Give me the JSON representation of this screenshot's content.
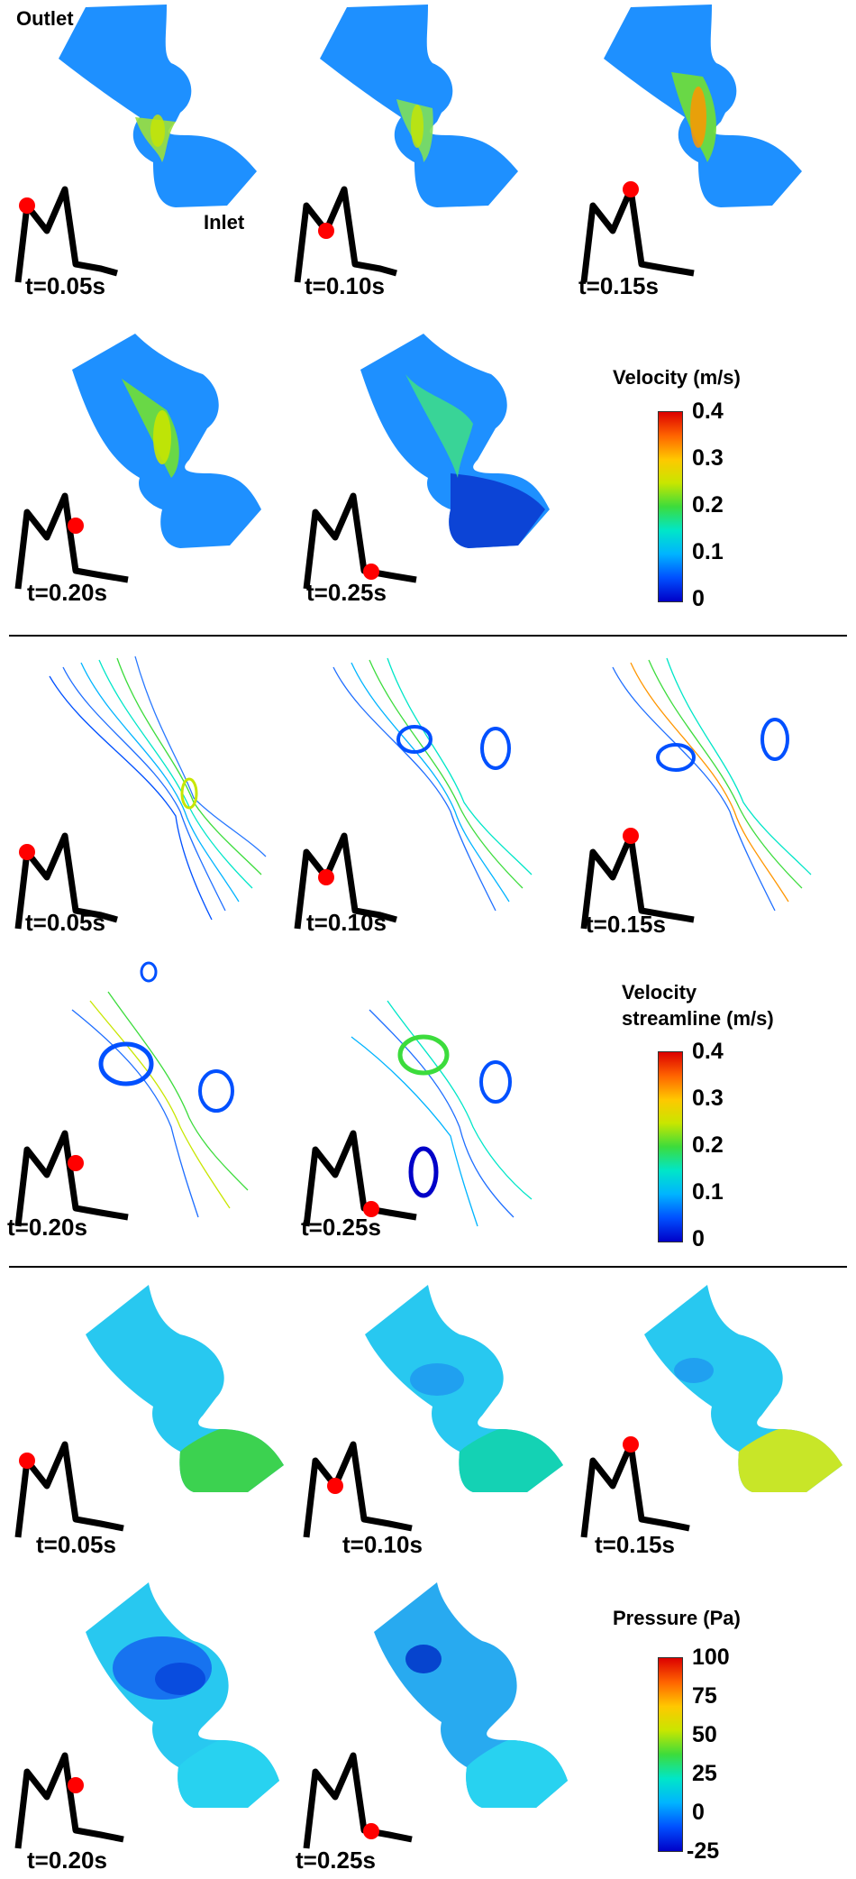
{
  "labels": {
    "outlet": "Outlet",
    "inlet": "Inlet"
  },
  "time_points": [
    "t=0.05s",
    "t=0.10s",
    "t=0.15s",
    "t=0.20s",
    "t=0.25s"
  ],
  "panels": [
    {
      "id": "velocity",
      "legend": {
        "title": "Velocity  (m/s)",
        "ticks": [
          "0.4",
          "0.3",
          "0.2",
          "0.1",
          "0"
        ],
        "range": [
          0,
          0.4
        ]
      },
      "frames": [
        {
          "time": "t=0.05s",
          "phase": 0
        },
        {
          "time": "t=0.10s",
          "phase": 1
        },
        {
          "time": "t=0.15s",
          "phase": 2
        },
        {
          "time": "t=0.20s",
          "phase": 3
        },
        {
          "time": "t=0.25s",
          "phase": 4
        }
      ]
    },
    {
      "id": "streamline",
      "legend": {
        "title_line1": "Velocity",
        "title_line2": "streamline (m/s)",
        "ticks": [
          "0.4",
          "0.3",
          "0.2",
          "0.1",
          "0"
        ],
        "range": [
          0,
          0.4
        ]
      },
      "frames": [
        {
          "time": "t=0.05s",
          "phase": 0
        },
        {
          "time": "t=0.10s",
          "phase": 1
        },
        {
          "time": "t=0.15s",
          "phase": 2
        },
        {
          "time": "t=0.20s",
          "phase": 3
        },
        {
          "time": "t=0.25s",
          "phase": 4
        }
      ]
    },
    {
      "id": "pressure",
      "legend": {
        "title": "Pressure  (Pa)",
        "ticks": [
          "100",
          "75",
          "50",
          "25",
          "0",
          "-25"
        ],
        "range": [
          -25,
          100
        ]
      },
      "frames": [
        {
          "time": "t=0.05s",
          "phase": 0
        },
        {
          "time": "t=0.10s",
          "phase": 1
        },
        {
          "time": "t=0.15s",
          "phase": 2
        },
        {
          "time": "t=0.20s",
          "phase": 3
        },
        {
          "time": "t=0.25s",
          "phase": 4
        }
      ]
    }
  ],
  "colors": {
    "jet": [
      "#0000c8",
      "#0050ff",
      "#00b4ff",
      "#00e6c8",
      "#3cdc3c",
      "#c8e600",
      "#ffc800",
      "#ff6400",
      "#dc0000"
    ],
    "waveform": "#000000",
    "marker": "#ff0000"
  }
}
